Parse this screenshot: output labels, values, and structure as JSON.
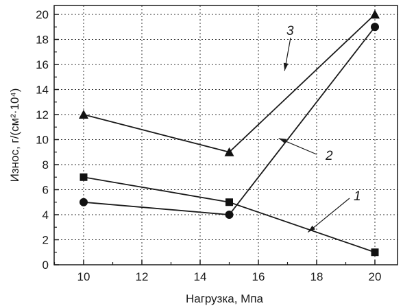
{
  "chart_data": {
    "type": "line",
    "xlabel": "Нагрузка, Мпа",
    "ylabel": "Износ, г/(см²·10⁴)",
    "xlim": [
      9,
      21
    ],
    "ylim": [
      0,
      20.5
    ],
    "x_ticks": [
      10,
      12,
      14,
      16,
      18,
      20
    ],
    "y_ticks": [
      0,
      2,
      4,
      6,
      8,
      10,
      12,
      14,
      16,
      18,
      20
    ],
    "grid": true,
    "series": [
      {
        "name": "1",
        "marker": "square",
        "x": [
          10,
          15,
          20
        ],
        "values": [
          7,
          5,
          1
        ]
      },
      {
        "name": "2",
        "marker": "circle",
        "x": [
          10,
          15,
          20
        ],
        "values": [
          5,
          4,
          19
        ]
      },
      {
        "name": "3",
        "marker": "triangle",
        "x": [
          10,
          15,
          20
        ],
        "values": [
          12,
          9,
          20
        ]
      }
    ],
    "annotations": [
      {
        "text": "1",
        "series": "1",
        "at": [
          17.7,
          2.6
        ]
      },
      {
        "text": "2",
        "series": "2",
        "at": [
          16.7,
          10.1
        ]
      },
      {
        "text": "3",
        "series": "3",
        "at": [
          16.9,
          15.5
        ]
      }
    ]
  }
}
